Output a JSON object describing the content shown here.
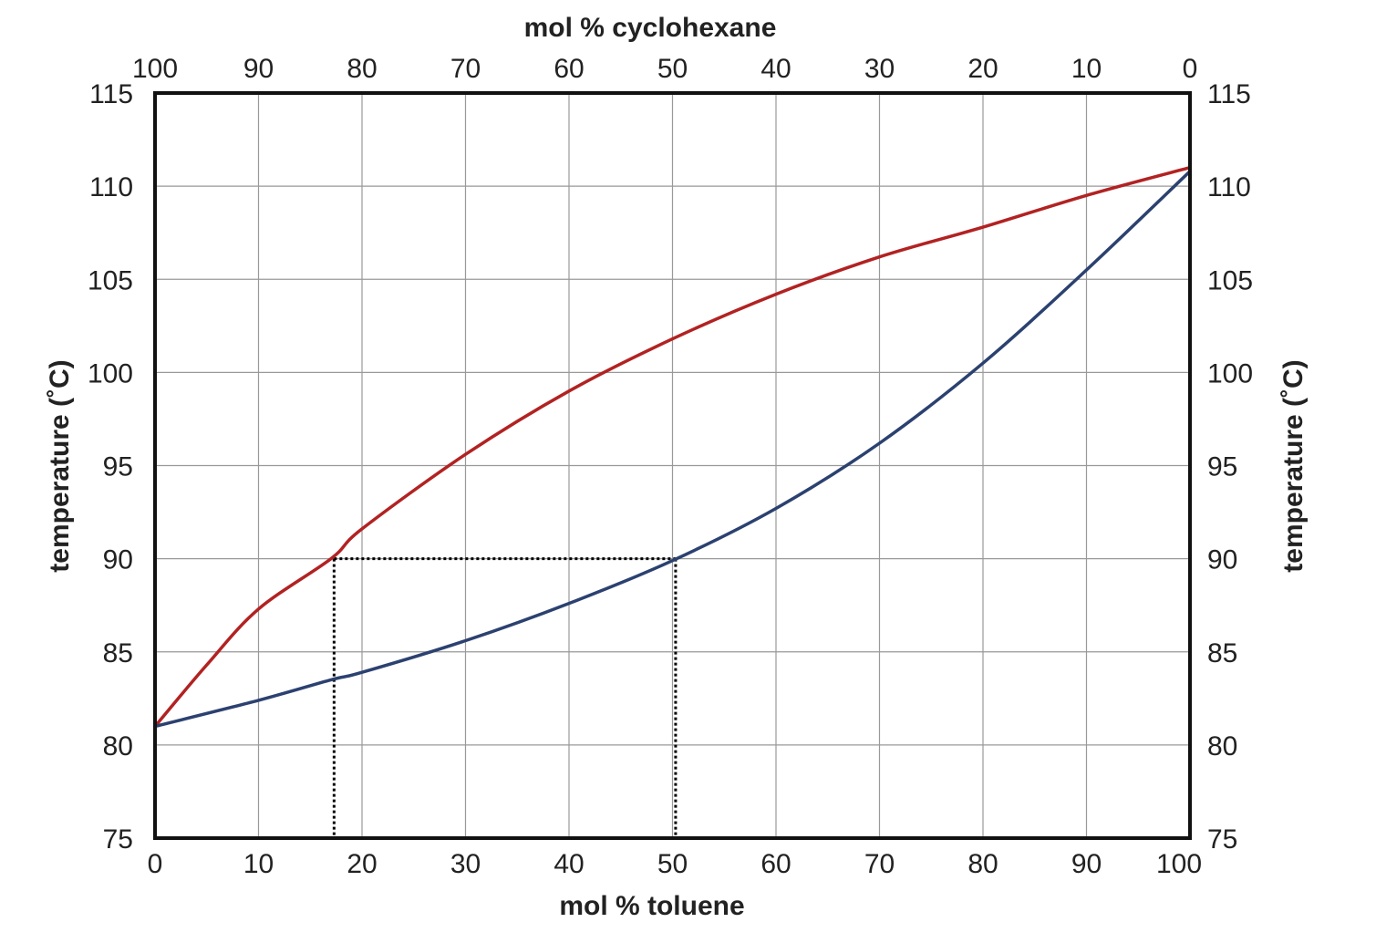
{
  "chart_data": {
    "type": "line",
    "title": "",
    "xlabel": "mol % toluene",
    "x2label": "mol % cyclohexane",
    "ylabel": "temperature (˚C)",
    "y2label": "temperature (˚C)",
    "xlim": [
      0,
      100
    ],
    "ylim": [
      75,
      115
    ],
    "grid": true,
    "x_ticks": [
      "0",
      "10",
      "20",
      "30",
      "40",
      "50",
      "60",
      "70",
      "80",
      "90",
      "100"
    ],
    "x2_ticks": [
      "100",
      "90",
      "80",
      "70",
      "60",
      "50",
      "40",
      "30",
      "20",
      "10",
      "0"
    ],
    "y_ticks": [
      "75",
      "80",
      "85",
      "90",
      "95",
      "100",
      "105",
      "110",
      "115"
    ],
    "y2_ticks": [
      "75",
      "80",
      "85",
      "90",
      "95",
      "100",
      "105",
      "110",
      "115"
    ],
    "series": [
      {
        "color": "#b22222",
        "x": [
          0,
          5,
          10,
          17,
          20,
          30,
          40,
          50,
          60,
          70,
          80,
          90,
          100
        ],
        "y": [
          81,
          84.3,
          87.3,
          90,
          91.6,
          95.6,
          99,
          101.8,
          104.2,
          106.2,
          107.8,
          109.5,
          111
        ]
      },
      {
        "color": "#2b4170",
        "x": [
          0,
          10,
          17,
          20,
          30,
          40,
          50,
          60,
          70,
          80,
          90,
          100
        ],
        "y": [
          81,
          82.4,
          83.5,
          83.9,
          85.6,
          87.6,
          89.9,
          92.7,
          96.2,
          100.5,
          105.5,
          110.8
        ]
      }
    ],
    "guides": [
      {
        "x": 17.3,
        "y": 90
      },
      {
        "x": 50.3,
        "y": 90
      }
    ],
    "guide_color": "#000000"
  }
}
